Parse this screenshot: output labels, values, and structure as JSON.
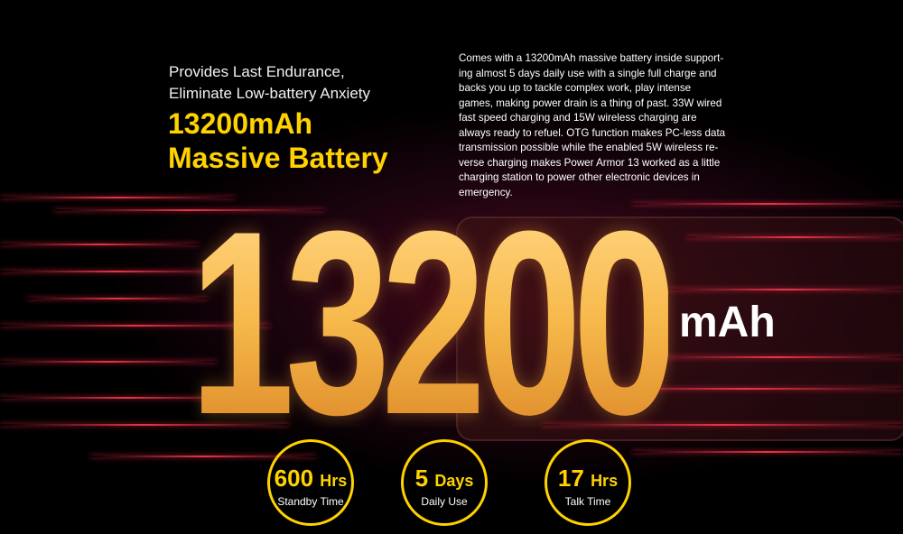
{
  "headline": {
    "subtitle_line1": "Provides Last Endurance,",
    "subtitle_line2": "Eliminate Low-battery Anxiety",
    "title_line1": "13200mAh",
    "title_line2": "Massive Battery"
  },
  "description_lines": [
    "Comes with a 13200mAh massive battery inside support-",
    "ing almost 5 days daily use with a single full charge and",
    "backs you up to tackle complex work, play intense",
    "games, making power drain is a thing of past. 33W wired",
    "fast speed charging and 15W wireless charging are",
    "always ready to refuel. OTG function makes PC-less data",
    "transmission possible while the enabled 5W wireless re-",
    "verse charging makes Power Armor 13 worked as a little",
    "charging station to power other electronic devices in",
    "emergency."
  ],
  "hero": {
    "number": "13200",
    "unit": "mAh"
  },
  "stats": [
    {
      "value": "600",
      "unit": "Hrs",
      "label": "Standby Time"
    },
    {
      "value": "5",
      "unit": "Days",
      "label": "Daily Use"
    },
    {
      "value": "17",
      "unit": "Hrs",
      "label": "Talk Time"
    }
  ],
  "colors": {
    "accent": "#ffd200",
    "glow": "#ff3c50",
    "background": "#000000"
  }
}
